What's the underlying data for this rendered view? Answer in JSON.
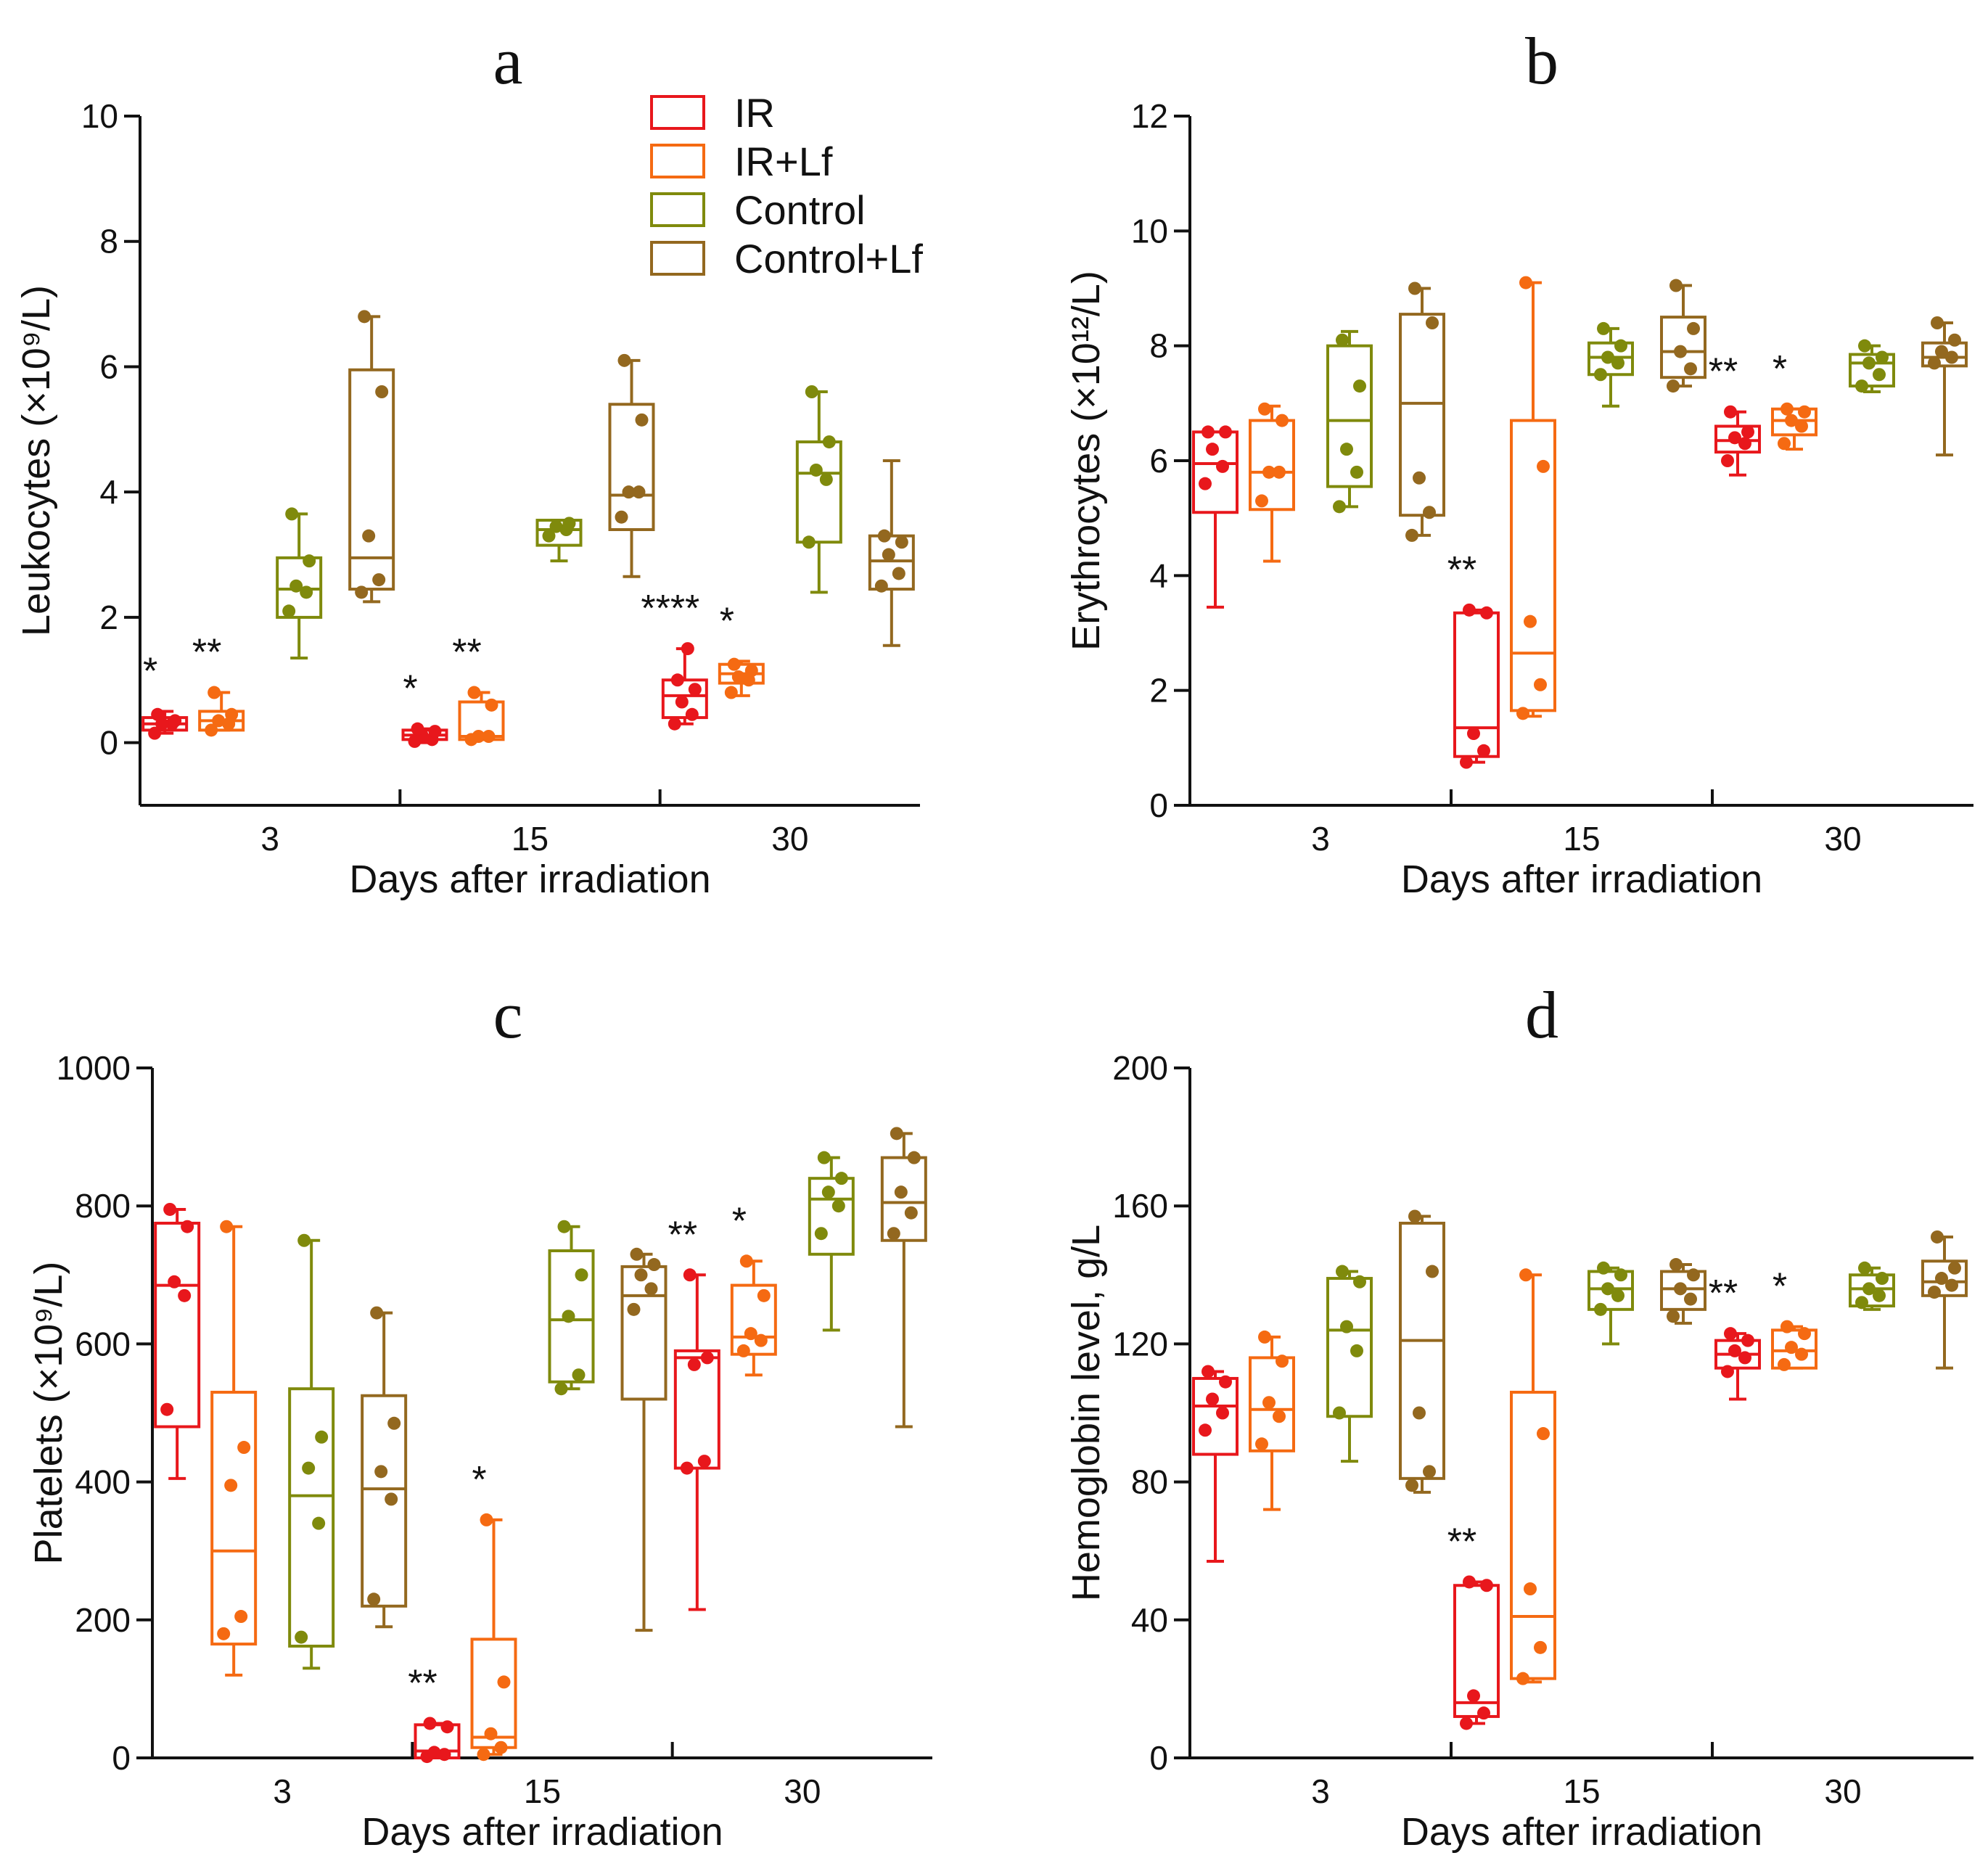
{
  "colors": {
    "IR": "#e8171c",
    "IR+Lf": "#f56a12",
    "Control": "#7f8a0c",
    "Control+Lf": "#93681f",
    "axis": "#111111"
  },
  "legend": [
    "IR",
    "IR+Lf",
    "Control",
    "Control+Lf"
  ],
  "chart_data": [
    {
      "type": "box",
      "panel": "a",
      "title": "a",
      "xlabel": "Days after irradiation",
      "ylabel": "Leukocytes (×10⁹/L)",
      "ylim": [
        -1,
        10
      ],
      "yticks": [
        0,
        2,
        4,
        6,
        8,
        10
      ],
      "categories": [
        "3",
        "15",
        "30"
      ],
      "series": [
        {
          "name": "IR",
          "boxes": [
            {
              "min": 0.15,
              "q1": 0.2,
              "median": 0.3,
              "q3": 0.4,
              "max": 0.5,
              "points": [
                0.15,
                0.3,
                0.3,
                0.35,
                0.45
              ]
            },
            {
              "min": 0.0,
              "q1": 0.05,
              "median": 0.12,
              "q3": 0.2,
              "max": 0.22,
              "points": [
                0.02,
                0.05,
                0.12,
                0.18,
                0.22
              ]
            },
            {
              "min": 0.3,
              "q1": 0.4,
              "median": 0.75,
              "q3": 1.0,
              "max": 1.5,
              "points": [
                0.3,
                0.45,
                0.65,
                0.85,
                1.0,
                1.5
              ]
            }
          ],
          "stars": [
            "*",
            "*",
            "****"
          ]
        },
        {
          "name": "IR+Lf",
          "boxes": [
            {
              "min": 0.2,
              "q1": 0.2,
              "median": 0.35,
              "q3": 0.5,
              "max": 0.8,
              "points": [
                0.2,
                0.3,
                0.35,
                0.45,
                0.8
              ]
            },
            {
              "min": 0.05,
              "q1": 0.05,
              "median": 0.1,
              "q3": 0.65,
              "max": 0.8,
              "points": [
                0.05,
                0.1,
                0.1,
                0.6,
                0.8
              ]
            },
            {
              "min": 0.75,
              "q1": 0.95,
              "median": 1.1,
              "q3": 1.25,
              "max": 1.3,
              "points": [
                0.8,
                1.0,
                1.05,
                1.15,
                1.25
              ]
            }
          ],
          "stars": [
            "**",
            "**",
            "*"
          ]
        },
        {
          "name": "Control",
          "boxes": [
            {
              "min": 1.35,
              "q1": 2.0,
              "median": 2.45,
              "q3": 2.95,
              "max": 3.65,
              "points": [
                2.1,
                2.4,
                2.5,
                2.9,
                3.65
              ]
            },
            {
              "min": 2.9,
              "q1": 3.15,
              "median": 3.4,
              "q3": 3.55,
              "max": 3.55,
              "points": [
                3.3,
                3.4,
                3.45,
                3.5
              ]
            },
            {
              "min": 2.4,
              "q1": 3.2,
              "median": 4.3,
              "q3": 4.8,
              "max": 5.6,
              "points": [
                3.2,
                4.2,
                4.35,
                4.8,
                5.6
              ]
            }
          ]
        },
        {
          "name": "Control+Lf",
          "boxes": [
            {
              "min": 2.25,
              "q1": 2.45,
              "median": 2.95,
              "q3": 5.95,
              "max": 6.8,
              "points": [
                2.4,
                2.6,
                3.3,
                5.6,
                6.8
              ]
            },
            {
              "min": 2.65,
              "q1": 3.4,
              "median": 3.95,
              "q3": 5.4,
              "max": 6.1,
              "points": [
                3.6,
                4.0,
                4.0,
                5.15,
                6.1
              ]
            },
            {
              "min": 1.55,
              "q1": 2.45,
              "median": 2.9,
              "q3": 3.3,
              "max": 4.5,
              "points": [
                2.5,
                2.7,
                3.0,
                3.2,
                3.3
              ]
            }
          ]
        }
      ]
    },
    {
      "type": "box",
      "panel": "b",
      "title": "b",
      "xlabel": "Days after irradiation",
      "ylabel": "Erythrocytes (×10¹²/L)",
      "ylim": [
        0,
        12
      ],
      "yticks": [
        0,
        2,
        4,
        6,
        8,
        10,
        12
      ],
      "categories": [
        "3",
        "15",
        "30"
      ],
      "series": [
        {
          "name": "IR",
          "boxes": [
            {
              "min": 3.45,
              "q1": 5.1,
              "median": 5.95,
              "q3": 6.5,
              "max": 6.5,
              "points": [
                5.6,
                5.9,
                6.2,
                6.5,
                6.5
              ]
            },
            {
              "min": 0.75,
              "q1": 0.85,
              "median": 1.35,
              "q3": 3.35,
              "max": 3.4,
              "points": [
                0.75,
                0.95,
                1.25,
                3.35,
                3.4
              ]
            },
            {
              "min": 5.75,
              "q1": 6.15,
              "median": 6.35,
              "q3": 6.6,
              "max": 6.85,
              "points": [
                6.0,
                6.3,
                6.4,
                6.5,
                6.85
              ]
            }
          ],
          "stars": [
            "",
            "**",
            "**"
          ]
        },
        {
          "name": "IR+Lf",
          "boxes": [
            {
              "min": 4.25,
              "q1": 5.15,
              "median": 5.8,
              "q3": 6.7,
              "max": 6.95,
              "points": [
                5.3,
                5.8,
                5.8,
                6.7,
                6.9
              ]
            },
            {
              "min": 1.55,
              "q1": 1.65,
              "median": 2.65,
              "q3": 6.7,
              "max": 9.1,
              "points": [
                1.6,
                2.1,
                3.2,
                5.9,
                9.1
              ]
            },
            {
              "min": 6.2,
              "q1": 6.45,
              "median": 6.7,
              "q3": 6.9,
              "max": 6.9,
              "points": [
                6.3,
                6.6,
                6.7,
                6.85,
                6.9
              ]
            }
          ],
          "stars": [
            "",
            "",
            "*"
          ]
        },
        {
          "name": "Control",
          "boxes": [
            {
              "min": 5.2,
              "q1": 5.55,
              "median": 6.7,
              "q3": 8.0,
              "max": 8.25,
              "points": [
                5.2,
                5.8,
                6.2,
                7.3,
                8.1
              ]
            },
            {
              "min": 6.95,
              "q1": 7.5,
              "median": 7.8,
              "q3": 8.05,
              "max": 8.3,
              "points": [
                7.5,
                7.7,
                7.8,
                8.0,
                8.3
              ]
            },
            {
              "min": 7.2,
              "q1": 7.3,
              "median": 7.7,
              "q3": 7.85,
              "max": 8.0,
              "points": [
                7.3,
                7.5,
                7.7,
                7.8,
                8.0
              ]
            }
          ]
        },
        {
          "name": "Control+Lf",
          "boxes": [
            {
              "min": 4.7,
              "q1": 5.05,
              "median": 7.0,
              "q3": 8.55,
              "max": 9.0,
              "points": [
                4.7,
                5.1,
                5.7,
                8.4,
                9.0
              ]
            },
            {
              "min": 7.3,
              "q1": 7.45,
              "median": 7.9,
              "q3": 8.5,
              "max": 9.05,
              "points": [
                7.3,
                7.6,
                7.9,
                8.3,
                9.05
              ]
            },
            {
              "min": 6.1,
              "q1": 7.65,
              "median": 7.8,
              "q3": 8.05,
              "max": 8.4,
              "points": [
                7.7,
                7.8,
                7.9,
                8.1,
                8.4
              ]
            }
          ]
        }
      ]
    },
    {
      "type": "box",
      "panel": "c",
      "title": "c",
      "xlabel": "Days after irradiation",
      "ylabel": "Platelets (×10⁹/L)",
      "ylim": [
        0,
        1000
      ],
      "yticks": [
        0,
        200,
        400,
        600,
        800,
        1000
      ],
      "categories": [
        "3",
        "15",
        "30"
      ],
      "series": [
        {
          "name": "IR",
          "boxes": [
            {
              "min": 405,
              "q1": 480,
              "median": 685,
              "q3": 775,
              "max": 795,
              "points": [
                505,
                670,
                690,
                770,
                795
              ]
            },
            {
              "min": 0,
              "q1": 0,
              "median": 10,
              "q3": 48,
              "max": 50,
              "points": [
                2,
                5,
                8,
                45,
                50
              ]
            },
            {
              "min": 215,
              "q1": 420,
              "median": 580,
              "q3": 590,
              "max": 700,
              "points": [
                420,
                430,
                570,
                580,
                700
              ]
            }
          ],
          "stars": [
            "",
            "**",
            "**"
          ]
        },
        {
          "name": "IR+Lf",
          "boxes": [
            {
              "min": 120,
              "q1": 165,
              "median": 300,
              "q3": 530,
              "max": 770,
              "points": [
                180,
                205,
                395,
                450,
                770
              ]
            },
            {
              "min": 5,
              "q1": 15,
              "median": 30,
              "q3": 172,
              "max": 345,
              "points": [
                5,
                15,
                35,
                110,
                345
              ]
            },
            {
              "min": 555,
              "q1": 585,
              "median": 610,
              "q3": 685,
              "max": 720,
              "points": [
                590,
                605,
                615,
                670,
                720
              ]
            }
          ],
          "stars": [
            "",
            "*",
            "*"
          ]
        },
        {
          "name": "Control",
          "boxes": [
            {
              "min": 130,
              "q1": 162,
              "median": 380,
              "q3": 535,
              "max": 750,
              "points": [
                175,
                340,
                420,
                465,
                750
              ]
            },
            {
              "min": 535,
              "q1": 545,
              "median": 635,
              "q3": 735,
              "max": 770,
              "points": [
                535,
                555,
                640,
                700,
                770
              ]
            },
            {
              "min": 620,
              "q1": 730,
              "median": 810,
              "q3": 840,
              "max": 870,
              "points": [
                760,
                800,
                820,
                840,
                870
              ]
            }
          ]
        },
        {
          "name": "Control+Lf",
          "boxes": [
            {
              "min": 190,
              "q1": 220,
              "median": 390,
              "q3": 525,
              "max": 645,
              "points": [
                230,
                375,
                415,
                485,
                645
              ]
            },
            {
              "min": 185,
              "q1": 520,
              "median": 670,
              "q3": 712,
              "max": 730,
              "points": [
                650,
                680,
                700,
                715,
                730
              ]
            },
            {
              "min": 480,
              "q1": 750,
              "median": 805,
              "q3": 870,
              "max": 905,
              "points": [
                760,
                790,
                820,
                870,
                905
              ]
            }
          ]
        }
      ]
    },
    {
      "type": "box",
      "panel": "d",
      "title": "d",
      "xlabel": "Days after irradiation",
      "ylabel": "Hemoglobin level, g/L",
      "ylim": [
        0,
        200
      ],
      "yticks": [
        0,
        40,
        80,
        120,
        160,
        200
      ],
      "categories": [
        "3",
        "15",
        "30"
      ],
      "series": [
        {
          "name": "IR",
          "boxes": [
            {
              "min": 57,
              "q1": 88,
              "median": 102,
              "q3": 110,
              "max": 112,
              "points": [
                95,
                100,
                104,
                109,
                112
              ]
            },
            {
              "min": 10,
              "q1": 12,
              "median": 16,
              "q3": 50,
              "max": 51,
              "points": [
                10,
                13,
                18,
                50,
                51
              ]
            },
            {
              "min": 104,
              "q1": 113,
              "median": 117,
              "q3": 121,
              "max": 123,
              "points": [
                112,
                116,
                118,
                121,
                123
              ]
            }
          ],
          "stars": [
            "",
            "**",
            "**"
          ]
        },
        {
          "name": "IR+Lf",
          "boxes": [
            {
              "min": 72,
              "q1": 89,
              "median": 101,
              "q3": 116,
              "max": 122,
              "points": [
                91,
                99,
                103,
                115,
                122
              ]
            },
            {
              "min": 22,
              "q1": 23,
              "median": 41,
              "q3": 106,
              "max": 140,
              "points": [
                23,
                32,
                49,
                94,
                140
              ]
            },
            {
              "min": 113,
              "q1": 113,
              "median": 118,
              "q3": 124,
              "max": 125,
              "points": [
                114,
                117,
                119,
                123,
                125
              ]
            }
          ],
          "stars": [
            "",
            "",
            "*"
          ]
        },
        {
          "name": "Control",
          "boxes": [
            {
              "min": 86,
              "q1": 99,
              "median": 124,
              "q3": 139,
              "max": 141,
              "points": [
                100,
                118,
                125,
                138,
                141
              ]
            },
            {
              "min": 120,
              "q1": 130,
              "median": 136,
              "q3": 141,
              "max": 142,
              "points": [
                130,
                134,
                136,
                140,
                142
              ]
            },
            {
              "min": 130,
              "q1": 131,
              "median": 136,
              "q3": 140,
              "max": 142,
              "points": [
                132,
                134,
                136,
                139,
                142
              ]
            }
          ]
        },
        {
          "name": "Control+Lf",
          "boxes": [
            {
              "min": 77,
              "q1": 81,
              "median": 121,
              "q3": 155,
              "max": 157,
              "points": [
                79,
                83,
                100,
                141,
                157
              ]
            },
            {
              "min": 126,
              "q1": 130,
              "median": 136,
              "q3": 141,
              "max": 143,
              "points": [
                128,
                133,
                136,
                140,
                143
              ]
            },
            {
              "min": 113,
              "q1": 134,
              "median": 138,
              "q3": 144,
              "max": 151,
              "points": [
                135,
                137,
                139,
                142,
                151
              ]
            }
          ]
        }
      ]
    }
  ]
}
